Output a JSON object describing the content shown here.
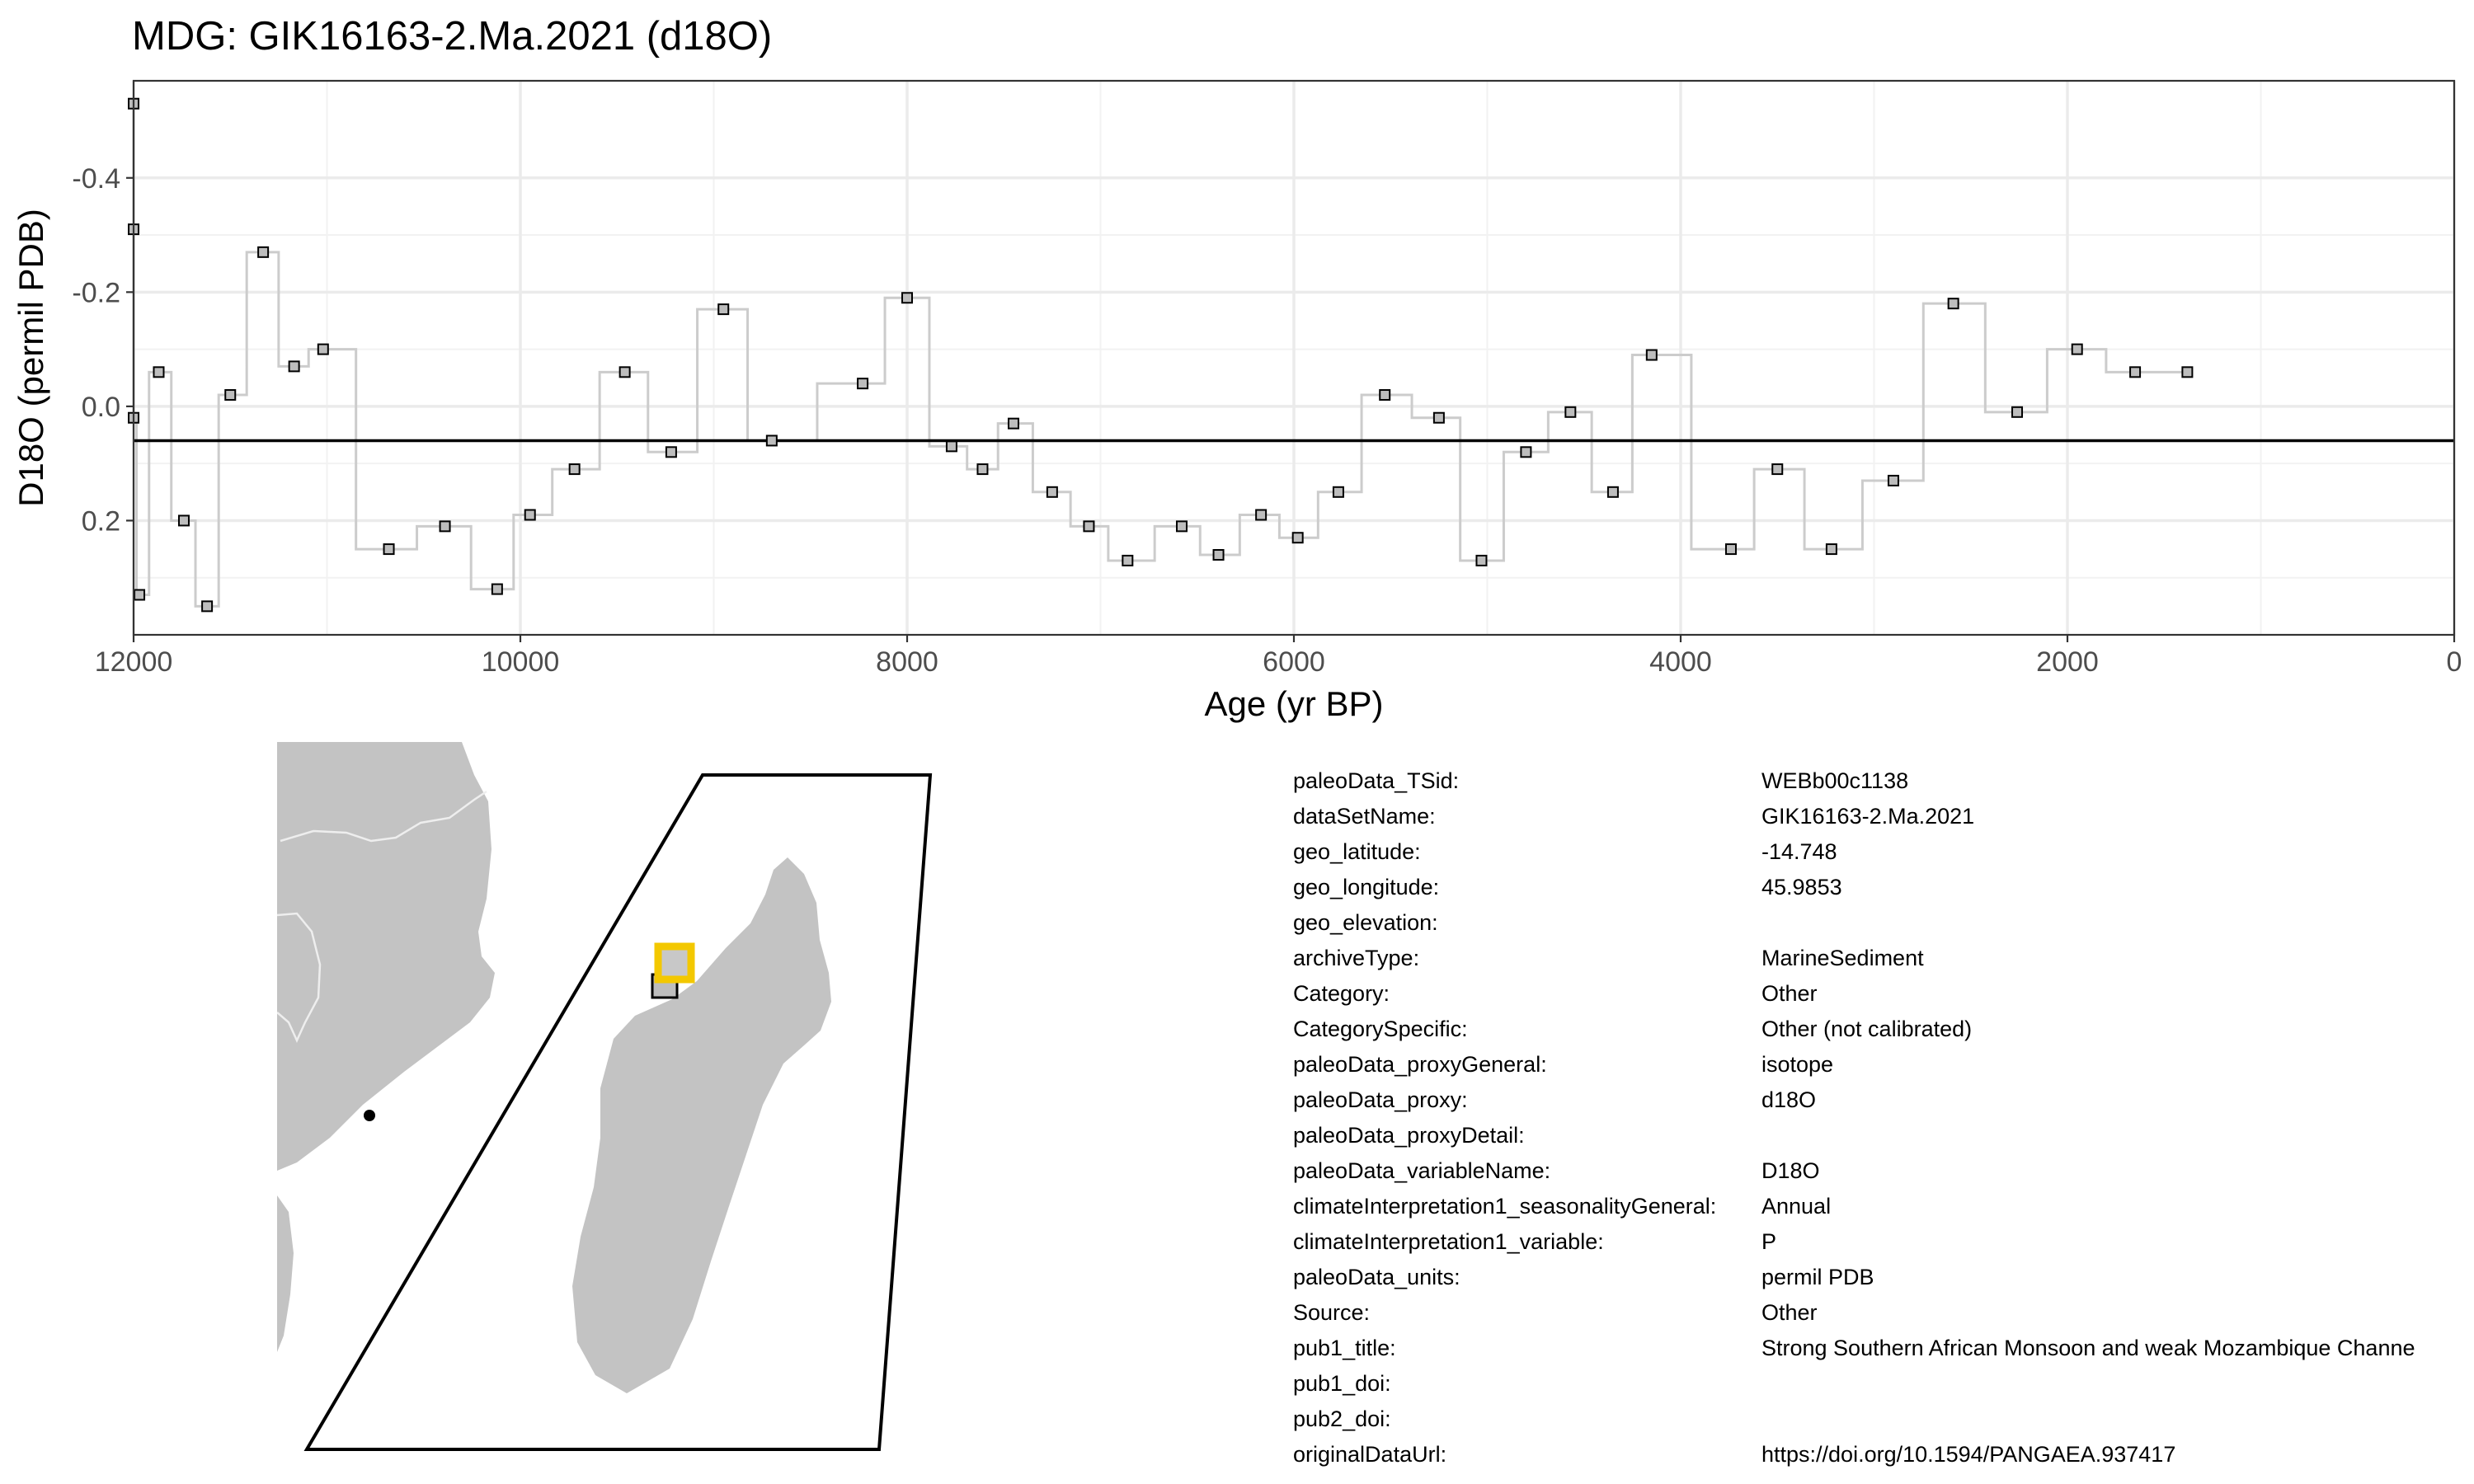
{
  "chart_data": {
    "type": "line",
    "title": "MDG: GIK16163-2.Ma.2021 (d18O)",
    "xlabel": "Age (yr BP)",
    "ylabel": "D18O (permil PDB)",
    "x_reversed": true,
    "y_reversed": true,
    "xlim": [
      12000,
      0
    ],
    "ylim": [
      0.4,
      -0.57
    ],
    "x_ticks": [
      12000,
      10000,
      8000,
      6000,
      4000,
      2000,
      0
    ],
    "y_ticks": [
      0.2,
      0.0,
      -0.2,
      -0.4
    ],
    "y_tick_labels": [
      "0.2",
      "0.0",
      "-0.2",
      "-0.4"
    ],
    "grid": true,
    "mean_line": 0.06,
    "step": "mid",
    "series": [
      {
        "x": [
          12000,
          12000,
          12000,
          11970,
          11870,
          11740,
          11620,
          11500,
          11330,
          11170,
          11020,
          10680,
          10390,
          10120,
          9950,
          9720,
          9460,
          9220,
          8950,
          8700,
          8230,
          8000,
          7770,
          7610,
          7450,
          7250,
          7060,
          6860,
          6580,
          6390,
          6170,
          5980,
          5770,
          5530,
          5250,
          5030,
          4800,
          4570,
          4350,
          4150,
          3740,
          3500,
          3220,
          2900,
          2590,
          2260,
          1950,
          1650,
          1380
        ],
        "y": [
          -0.53,
          -0.31,
          0.02,
          0.33,
          -0.06,
          0.2,
          0.35,
          -0.02,
          -0.27,
          -0.07,
          -0.1,
          0.25,
          0.21,
          0.32,
          0.19,
          0.11,
          -0.06,
          0.08,
          -0.17,
          0.06,
          -0.04,
          -0.19,
          0.07,
          0.11,
          0.03,
          0.15,
          0.21,
          0.27,
          0.21,
          0.26,
          0.19,
          0.23,
          0.15,
          -0.02,
          0.02,
          0.27,
          0.08,
          0.01,
          0.15,
          -0.09,
          0.25,
          0.11,
          0.25,
          0.13,
          -0.18,
          0.01,
          -0.1,
          -0.06,
          -0.06
        ]
      }
    ]
  },
  "metadata": [
    {
      "key": "paleoData_TSid:",
      "value": "WEBb00c1138"
    },
    {
      "key": "dataSetName:",
      "value": "GIK16163-2.Ma.2021"
    },
    {
      "key": "geo_latitude:",
      "value": "-14.748"
    },
    {
      "key": "geo_longitude:",
      "value": "45.9853"
    },
    {
      "key": "geo_elevation:",
      "value": ""
    },
    {
      "key": "archiveType:",
      "value": "MarineSediment"
    },
    {
      "key": "Category:",
      "value": "Other"
    },
    {
      "key": "CategorySpecific:",
      "value": "Other (not calibrated)"
    },
    {
      "key": "paleoData_proxyGeneral:",
      "value": "isotope"
    },
    {
      "key": "paleoData_proxy:",
      "value": "d18O"
    },
    {
      "key": "paleoData_proxyDetail:",
      "value": ""
    },
    {
      "key": "paleoData_variableName:",
      "value": "D18O"
    },
    {
      "key": "climateInterpretation1_seasonalityGeneral:",
      "value": "Annual"
    },
    {
      "key": "climateInterpretation1_variable:",
      "value": "P"
    },
    {
      "key": "paleoData_units:",
      "value": "permil PDB"
    },
    {
      "key": "Source:",
      "value": "Other"
    },
    {
      "key": "pub1_title:",
      "value": "Strong Southern African Monsoon and weak Mozambique Channe"
    },
    {
      "key": "pub1_doi:",
      "value": ""
    },
    {
      "key": "pub2_doi:",
      "value": ""
    },
    {
      "key": "originalDataUrl:",
      "value": "https://doi.org/10.1594/PANGAEA.937417"
    }
  ],
  "colors": {
    "land": "#c3c3c3",
    "border": "#eeeeee",
    "site_highlight": "#f3c800",
    "series_line": "#cccccc",
    "marker_fill": "#bdbdbd",
    "grid": "#ebebeb"
  }
}
